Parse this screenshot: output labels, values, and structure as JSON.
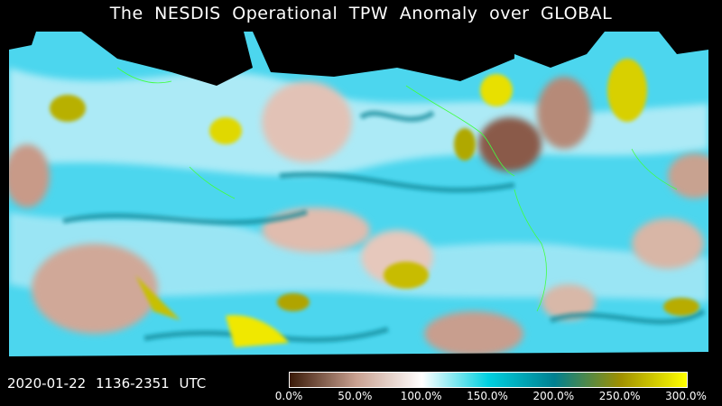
{
  "title": "The NESDIS  Operational  TPW Anomaly over GLOBAL",
  "timestamp": "2020-01-22  1136-2351  UTC",
  "colorbar": {
    "ticks": [
      "0.0%",
      "50.0%",
      "100.0%",
      "150.0%",
      "200.0%",
      "250.0%",
      "300.0%"
    ],
    "colors": [
      "#3a1a08",
      "#c8a090",
      "#ffffff",
      "#00d0e0",
      "#008090",
      "#a09000",
      "#ffff00"
    ]
  },
  "map": {
    "background_color": "#40d8f0",
    "coastline_color": "#40ff40",
    "no_data_color": "#000000"
  }
}
